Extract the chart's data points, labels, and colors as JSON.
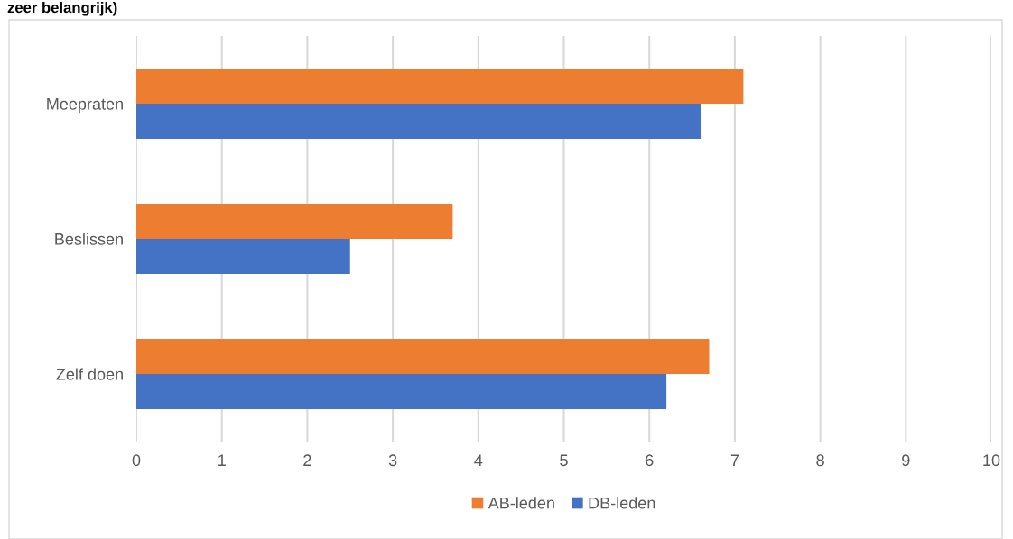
{
  "chart_data": {
    "type": "bar",
    "orientation": "horizontal",
    "title": "zeer belangrijk)",
    "categories": [
      "Meepraten",
      "Beslissen",
      "Zelf doen"
    ],
    "series": [
      {
        "name": "AB-leden",
        "color": "#ed7d31",
        "values": [
          7.1,
          3.7,
          6.7
        ]
      },
      {
        "name": "DB-leden",
        "color": "#4472c4",
        "values": [
          6.6,
          2.5,
          6.2
        ]
      }
    ],
    "xlim": [
      0,
      10
    ],
    "xticks": [
      0,
      1,
      2,
      3,
      4,
      5,
      6,
      7,
      8,
      9,
      10
    ],
    "grid": "x",
    "legend": "bottom"
  }
}
